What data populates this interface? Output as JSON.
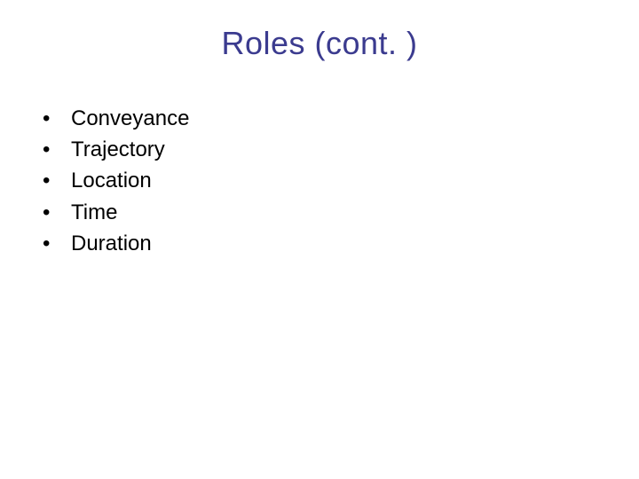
{
  "slide": {
    "title": "Roles (cont. )",
    "title_color": "#3b3b8f",
    "title_fontsize": 36,
    "bullets": [
      {
        "text": "Conveyance"
      },
      {
        "text": "Trajectory"
      },
      {
        "text": "Location"
      },
      {
        "text": "Time"
      },
      {
        "text": "Duration"
      }
    ],
    "bullet_fontsize": 24,
    "bullet_color": "#000000",
    "background_color": "#ffffff"
  }
}
